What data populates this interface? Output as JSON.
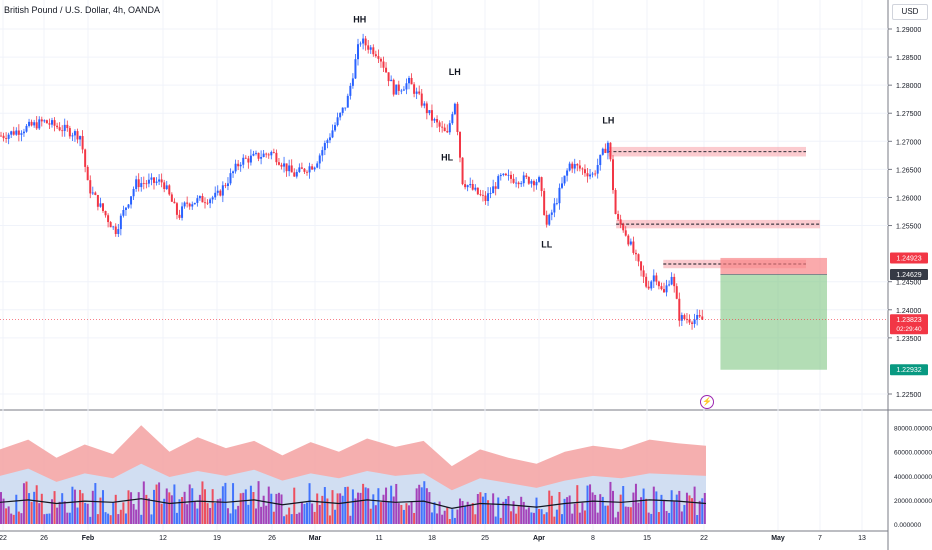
{
  "header": {
    "symbol_title": "British Pound / U.S. Dollar, 4h, OANDA",
    "currency": "USD"
  },
  "colors": {
    "up": "#2962ff",
    "down": "#f23645",
    "stop_zone": "#f77c80",
    "target_zone": "#81c784",
    "supply_zone": "#f7a1a8",
    "grid": "#f0f3fa",
    "axis_text": "#131722"
  },
  "chart_data": [
    {
      "type": "candlestick",
      "title": "British Pound / U.S. Dollar, 4h, OANDA",
      "y_axis": {
        "unit": "USD",
        "range": [
          1.2212,
          1.2922
        ],
        "ticks": [
          "1.29000",
          "1.28500",
          "1.28000",
          "1.27500",
          "1.27000",
          "1.26500",
          "1.26000",
          "1.25500",
          "1.24500",
          "1.24000",
          "1.23500",
          "1.22500"
        ]
      },
      "x_axis": {
        "ticks": [
          "22",
          "26",
          "Feb",
          "12",
          "19",
          "26",
          "Mar",
          "11",
          "18",
          "25",
          "Apr",
          "8",
          "15",
          "22",
          "May",
          "7",
          "13"
        ]
      },
      "path_points": [
        [
          "22",
          1.271
        ],
        [
          "26",
          1.2735
        ],
        [
          "Jan 31",
          1.271
        ],
        [
          "Feb",
          1.262
        ],
        [
          "Feb 5",
          1.254
        ],
        [
          "Feb 8",
          1.2625
        ],
        [
          "12",
          1.2628
        ],
        [
          "Feb 14",
          1.2565
        ],
        [
          "Feb 15",
          1.259
        ],
        [
          "19",
          1.2602
        ],
        [
          "Feb 22",
          1.2665
        ],
        [
          "26",
          1.268
        ],
        [
          "Feb 28",
          1.264
        ],
        [
          "Mar",
          1.266
        ],
        [
          "Mar 6",
          1.277
        ],
        [
          "Mar 8",
          1.288
        ],
        [
          "11",
          1.2855
        ],
        [
          "Mar 13",
          1.279
        ],
        [
          "Mar 15",
          1.2805
        ],
        [
          "18",
          1.274
        ],
        [
          "Mar 20",
          1.271
        ],
        [
          "Mar 21",
          1.2775
        ],
        [
          "Mar 22",
          1.263
        ],
        [
          "25",
          1.2595
        ],
        [
          "Mar 27",
          1.2635
        ],
        [
          "Apr",
          1.263
        ],
        [
          "Apr 2",
          1.255
        ],
        [
          "Apr 3",
          1.2585
        ],
        [
          "Apr 5",
          1.266
        ],
        [
          "8",
          1.264
        ],
        [
          "Apr 10",
          1.27
        ],
        [
          "Apr 11",
          1.256
        ],
        [
          "Apr 12",
          1.2545
        ],
        [
          "15",
          1.244
        ],
        [
          "Apr 16",
          1.2465
        ],
        [
          "Apr 17",
          1.2425
        ],
        [
          "Apr 18",
          1.2465
        ],
        [
          "Apr 19",
          1.2385
        ],
        [
          "22",
          1.2382
        ]
      ],
      "annotations": [
        {
          "text": "HH",
          "x": "Mar 8",
          "y": 1.2912
        },
        {
          "text": "LH",
          "x": "Mar 21",
          "y": 1.2818
        },
        {
          "text": "HL",
          "x": "Mar 20",
          "y": 1.2666
        },
        {
          "text": "LL",
          "x": "Apr 2",
          "y": 1.2511
        },
        {
          "text": "LH",
          "x": "Apr 10",
          "y": 1.2732
        }
      ],
      "zones": [
        {
          "kind": "supply",
          "from": "Apr 10",
          "to": "May 5",
          "top": 1.269,
          "bottom": 1.2673,
          "dashed_level": 1.26815
        },
        {
          "kind": "supply",
          "from": "Apr 11",
          "to": "May 7",
          "top": 1.256,
          "bottom": 1.2545,
          "dashed_level": 1.25525
        },
        {
          "kind": "supply",
          "from": "Apr 17",
          "to": "May 5",
          "top": 1.2489,
          "bottom": 1.2474,
          "dashed_level": 1.24815
        }
      ],
      "position_tool": {
        "side": "short",
        "from": "Apr 24",
        "to": "May 8",
        "entry": 1.24629,
        "stop": 1.24923,
        "target": 1.22932
      },
      "price_labels": [
        {
          "text": "1.24923",
          "value": 1.24923,
          "color": "#f23645"
        },
        {
          "text": "1.24629",
          "value": 1.24629,
          "color": "#363a45"
        },
        {
          "text": "1.23823",
          "sub": "02:29:40",
          "value": 1.23823,
          "color": "#f23645"
        },
        {
          "text": "1.22932",
          "value": 1.22932,
          "color": "#089981"
        }
      ],
      "last_price": 1.23823,
      "countdown": "02:29:40"
    },
    {
      "type": "area",
      "panel": "volume",
      "y_axis": {
        "range": [
          0,
          88000
        ],
        "ticks": [
          "80000.000000",
          "60000.000000",
          "40000.000000",
          "20000.000000",
          "0.000000"
        ]
      },
      "series": [
        {
          "values": [
            62000,
            70000,
            55000,
            66000,
            58000,
            82000,
            60000,
            72000,
            63000,
            69000,
            57000,
            68000,
            60000,
            71000,
            64000,
            69000,
            48000,
            62000,
            55000,
            50000,
            60000,
            65000,
            62000,
            70000,
            67000,
            65000
          ],
          "color": "#f4a6a6"
        },
        {
          "values": [
            40000,
            46000,
            35000,
            42000,
            38000,
            50000,
            39000,
            44000,
            40000,
            45000,
            36000,
            42000,
            38000,
            44000,
            40000,
            42000,
            28000,
            38000,
            34000,
            30000,
            36000,
            40000,
            38000,
            42000,
            41000,
            40000
          ],
          "color": "#cfe0f6"
        },
        {
          "values": [
            18000,
            20000,
            17000,
            19000,
            18000,
            21000,
            17000,
            19000,
            18000,
            20000,
            16000,
            19000,
            17000,
            20000,
            18000,
            19000,
            13000,
            17000,
            16000,
            14000,
            17000,
            19000,
            18000,
            20000,
            19000,
            17000
          ],
          "color": "#131722"
        }
      ]
    }
  ]
}
